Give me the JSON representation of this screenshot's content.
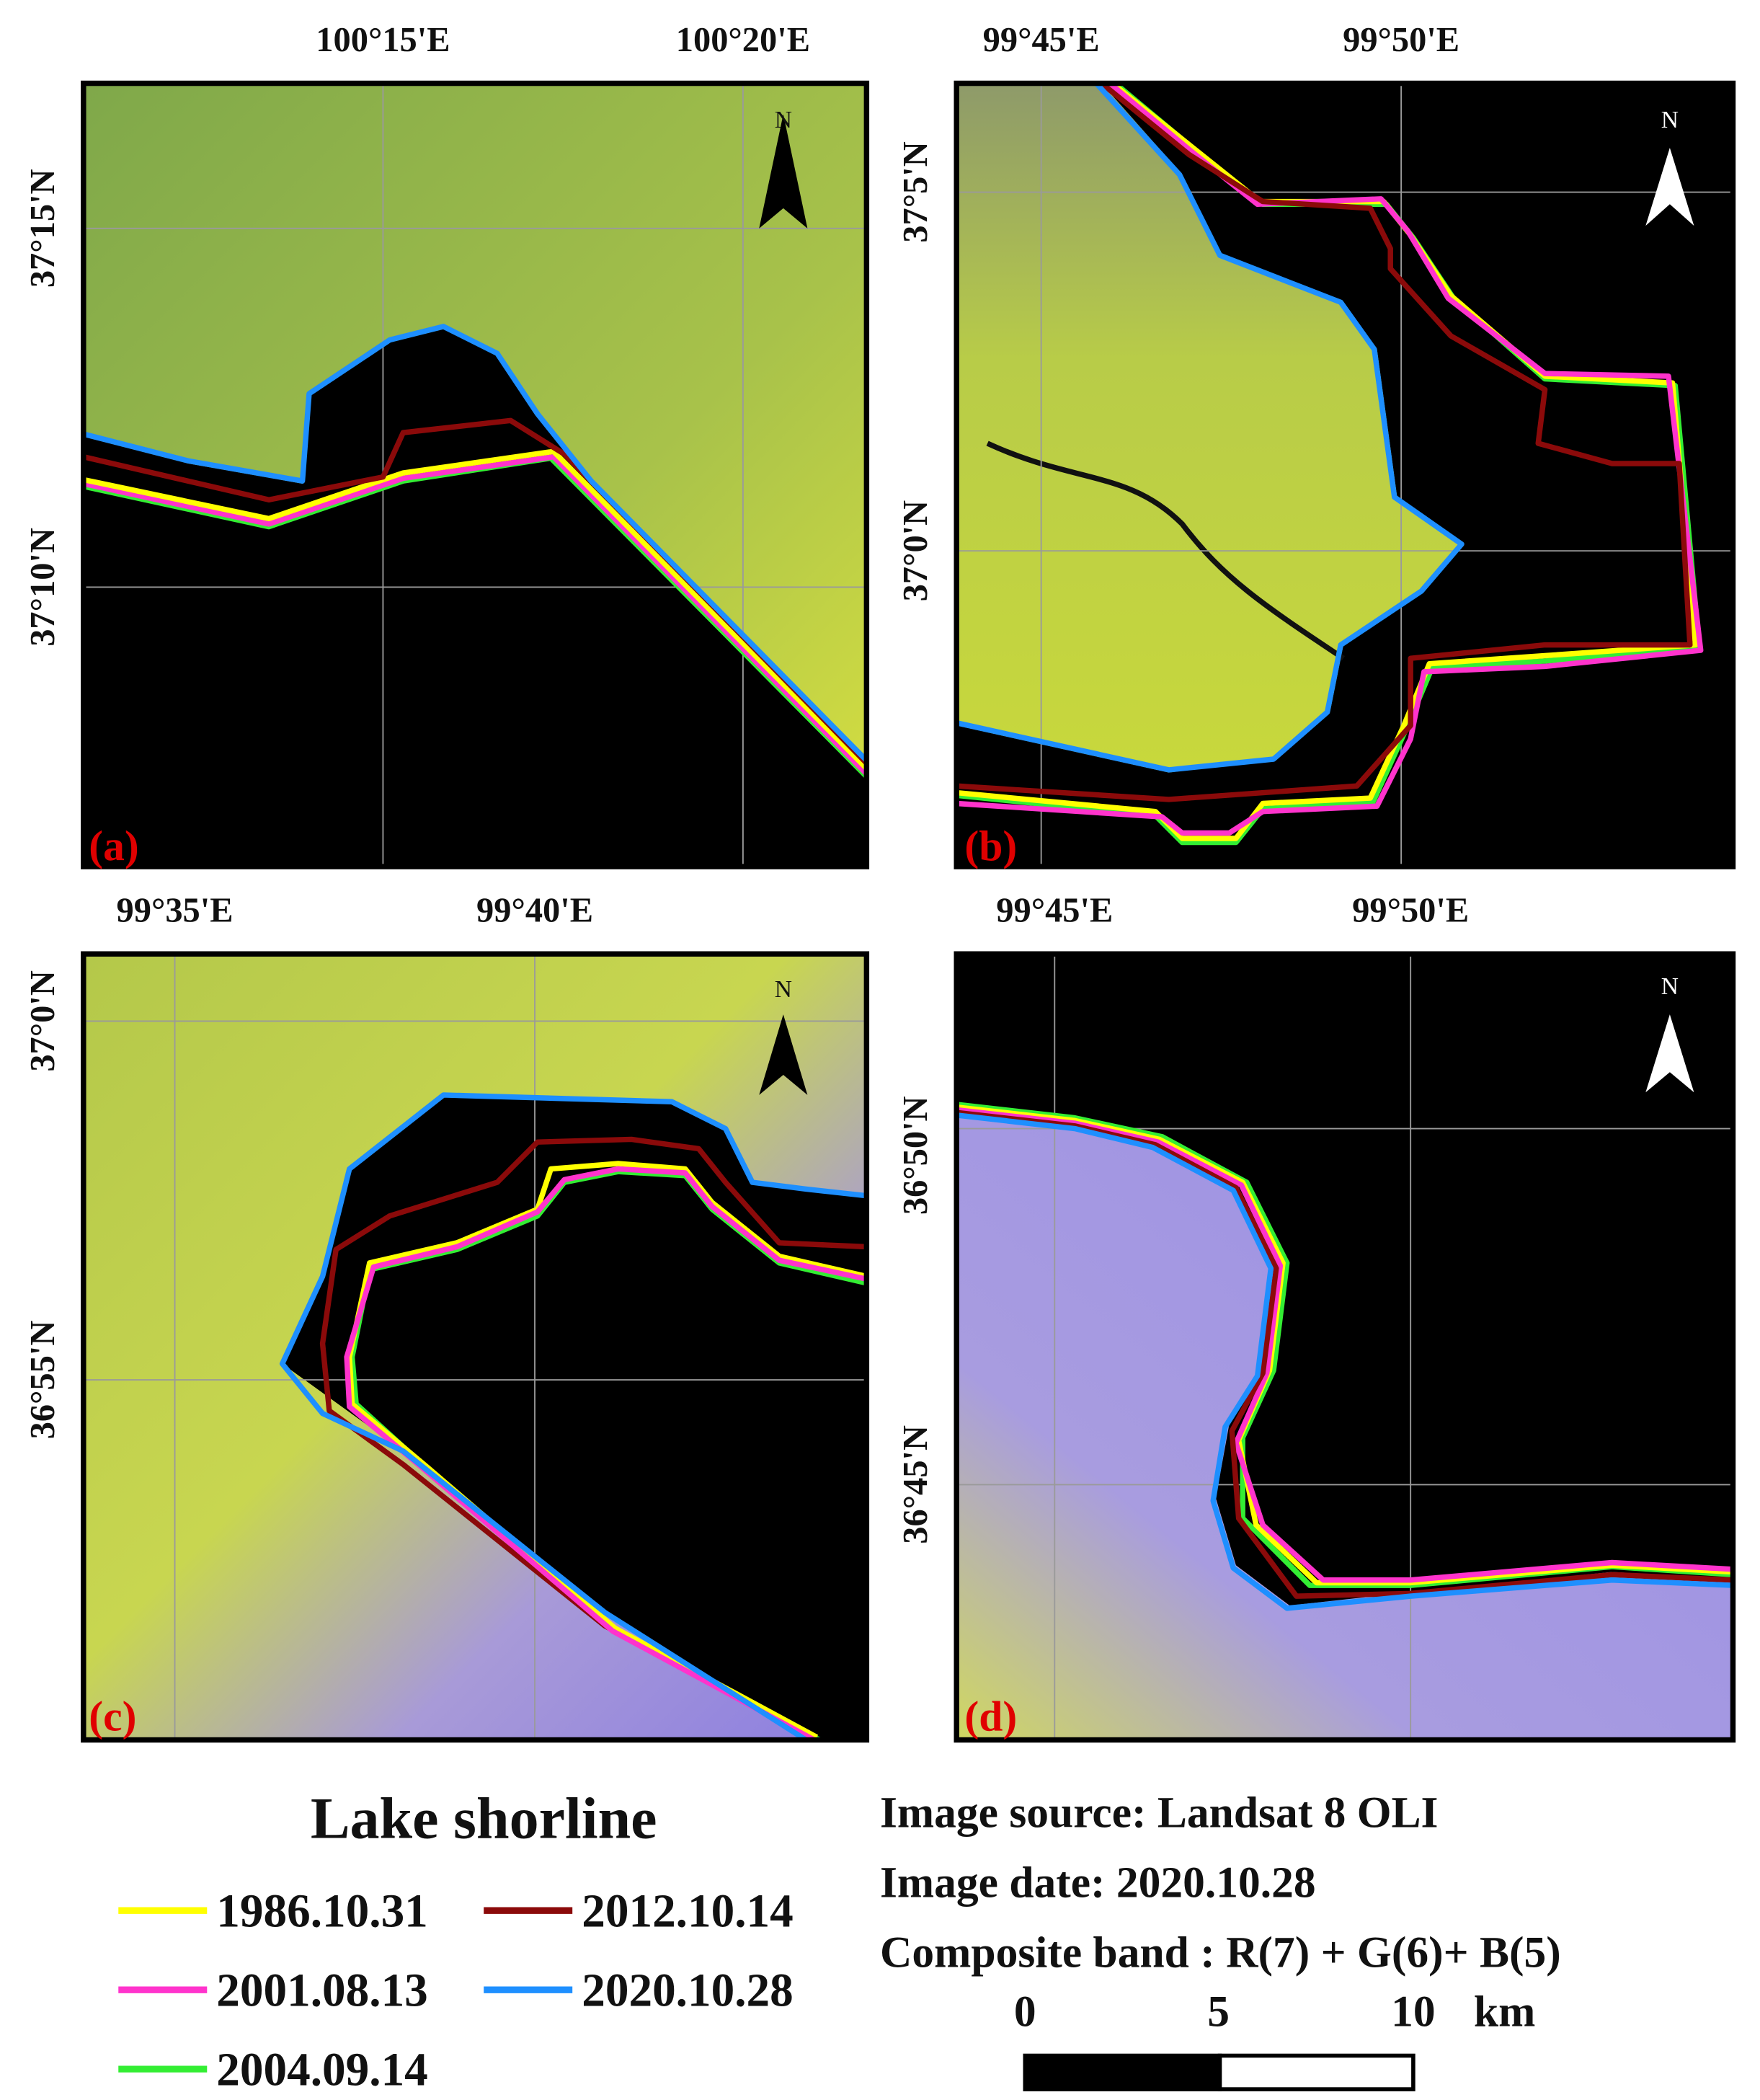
{
  "panels": [
    {
      "label": "(a)",
      "north": "N",
      "x_labels": [
        "100°15'E",
        "100°20'E"
      ],
      "y_labels": [
        "37°15'N",
        "37°10'N"
      ]
    },
    {
      "label": "(b)",
      "north": "N",
      "x_labels": [
        "99°45'E",
        "99°50'E"
      ],
      "y_labels": [
        "37°5'N",
        "37°0'N"
      ]
    },
    {
      "label": "(c)",
      "north": "N",
      "x_labels": [
        "99°35'E",
        "99°40'E"
      ],
      "y_labels": [
        "37°0'N",
        "36°55'N"
      ]
    },
    {
      "label": "(d)",
      "north": "N",
      "x_labels": [
        "99°45'E",
        "99°50'E"
      ],
      "y_labels": [
        "36°50'N",
        "36°45'N"
      ]
    }
  ],
  "legend": {
    "title": "Lake shorline",
    "entries": [
      {
        "label": "1986.10.31",
        "color": "#ffff00"
      },
      {
        "label": "2001.08.13",
        "color": "#ff33cc"
      },
      {
        "label": "2004.09.14",
        "color": "#33ee33"
      },
      {
        "label": "2012.10.14",
        "color": "#8b0a0a"
      },
      {
        "label": "2020.10.28",
        "color": "#1e8fff"
      }
    ]
  },
  "info": {
    "lines": [
      "Image source: Landsat 8 OLI",
      "Image date: 2020.10.28",
      "Composite band : R(7) + G(6)+ B(5)"
    ]
  },
  "scale": {
    "labels": [
      "0",
      "5",
      "10"
    ],
    "unit": "km"
  }
}
